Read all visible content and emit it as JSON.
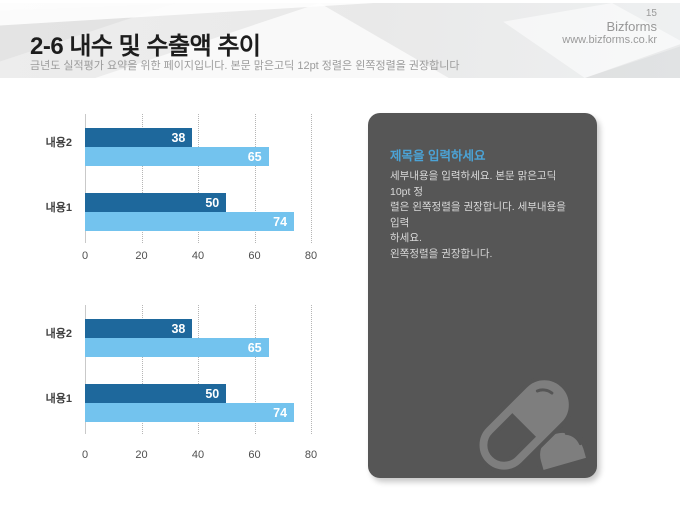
{
  "header": {
    "title": "2-6 내수 및 수출액 추이",
    "subtitle": "금년도 실적평가 요약을 위한 페이지입니다. 본문 맑은고딕 12pt 정렬은 왼쪽정렬을 권장합니다",
    "page_number": "15",
    "brand": "Bizforms",
    "website": "www.bizforms.co.kr"
  },
  "panel": {
    "title": "제목을 입력하세요",
    "body": "세부내용을 입력하세요. 본문 맑은고딕 10pt 정\n렬은 왼쪽정렬을 권장합니다. 세부내용을 입력\n하세요.\n왼쪽정렬을 권장합니다.",
    "icon": "pill-icon",
    "background": "#565656",
    "title_color": "#4ba3d6",
    "body_color": "#d8d8d8",
    "icon_color": "#7e7e7e"
  },
  "colors": {
    "series_dark_blue": "#1e689c",
    "series_light_blue": "#73c3ee",
    "header_band": "#ececec",
    "gridline": "#b5b5b5",
    "bar_value_text": "#ffffff"
  },
  "chart_data": [
    {
      "type": "bar",
      "orientation": "horizontal",
      "title": "",
      "categories": [
        "내용2",
        "내용1"
      ],
      "series": [
        {
          "name": "dark",
          "color": "#1e689c",
          "values": [
            38,
            50
          ]
        },
        {
          "name": "light",
          "color": "#73c3ee",
          "values": [
            65,
            74
          ]
        }
      ],
      "xticks": [
        0,
        20,
        40,
        60,
        80
      ],
      "xlim": [
        0,
        80
      ],
      "grid": "vertical-dotted",
      "legend": "none",
      "value_labels": "inside-end"
    },
    {
      "type": "bar",
      "orientation": "horizontal",
      "title": "",
      "categories": [
        "내용2",
        "내용1"
      ],
      "series": [
        {
          "name": "dark",
          "color": "#1e689c",
          "values": [
            38,
            50
          ]
        },
        {
          "name": "light",
          "color": "#73c3ee",
          "values": [
            65,
            74
          ]
        }
      ],
      "xticks": [
        0,
        20,
        40,
        60,
        80
      ],
      "xlim": [
        0,
        80
      ],
      "grid": "vertical-dotted",
      "legend": "none",
      "value_labels": "inside-end"
    }
  ]
}
